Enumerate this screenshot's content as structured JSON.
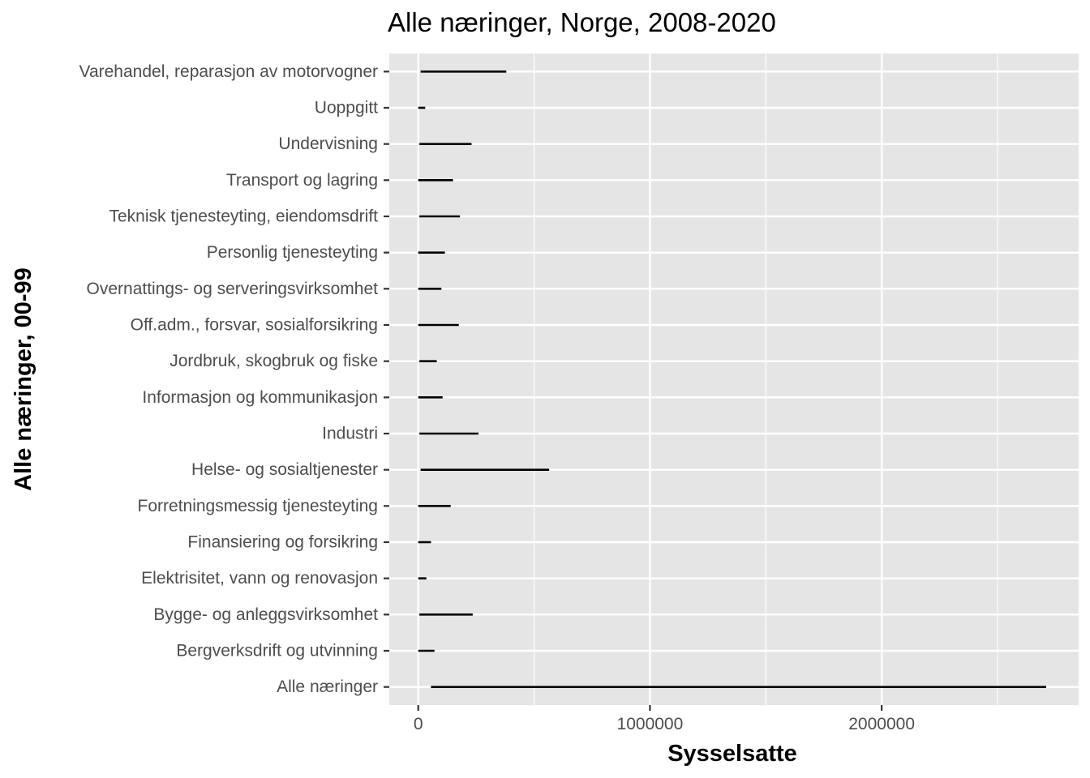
{
  "chart_data": {
    "type": "range",
    "title": "Alle næringer, Norge, 2008-2020",
    "xlabel": "Sysselsatte",
    "ylabel": "Alle næringer, 00-99",
    "xlim": [
      -125000,
      2850000
    ],
    "x_ticks": [
      0,
      1000000,
      2000000
    ],
    "x_tick_labels": [
      "0",
      "1000000",
      "2000000"
    ],
    "grid": true,
    "panel_background": "#e5e5e5",
    "grid_color": "#ffffff",
    "segment_color": "#000000",
    "tick_color": "#333333",
    "categories": [
      "Alle næringer",
      "Bergverksdrift og utvinning",
      "Bygge- og anleggsvirksomhet",
      "Elektrisitet, vann og renovasjon",
      "Finansiering og forsikring",
      "Forretningsmessig tjenesteyting",
      "Helse- og sosialtjenester",
      "Industri",
      "Informasjon og kommunikasjon",
      "Jordbruk, skogbruk og fiske",
      "Off.adm., forsvar, sosialforsikring",
      "Overnattings- og serveringsvirksomhet",
      "Personlig tjenesteyting",
      "Teknisk tjenesteyting, eiendomsdrift",
      "Transport og lagring",
      "Undervisning",
      "Uoppgitt",
      "Varehandel, reparasjon av motorvogner"
    ],
    "ranges": [
      [
        55000,
        2710000
      ],
      [
        0,
        70000
      ],
      [
        5000,
        235000
      ],
      [
        0,
        35000
      ],
      [
        0,
        55000
      ],
      [
        0,
        140000
      ],
      [
        10000,
        565000
      ],
      [
        5000,
        260000
      ],
      [
        0,
        105000
      ],
      [
        5000,
        80000
      ],
      [
        0,
        175000
      ],
      [
        0,
        100000
      ],
      [
        0,
        115000
      ],
      [
        5000,
        180000
      ],
      [
        0,
        150000
      ],
      [
        5000,
        230000
      ],
      [
        0,
        30000
      ],
      [
        10000,
        380000
      ]
    ]
  }
}
